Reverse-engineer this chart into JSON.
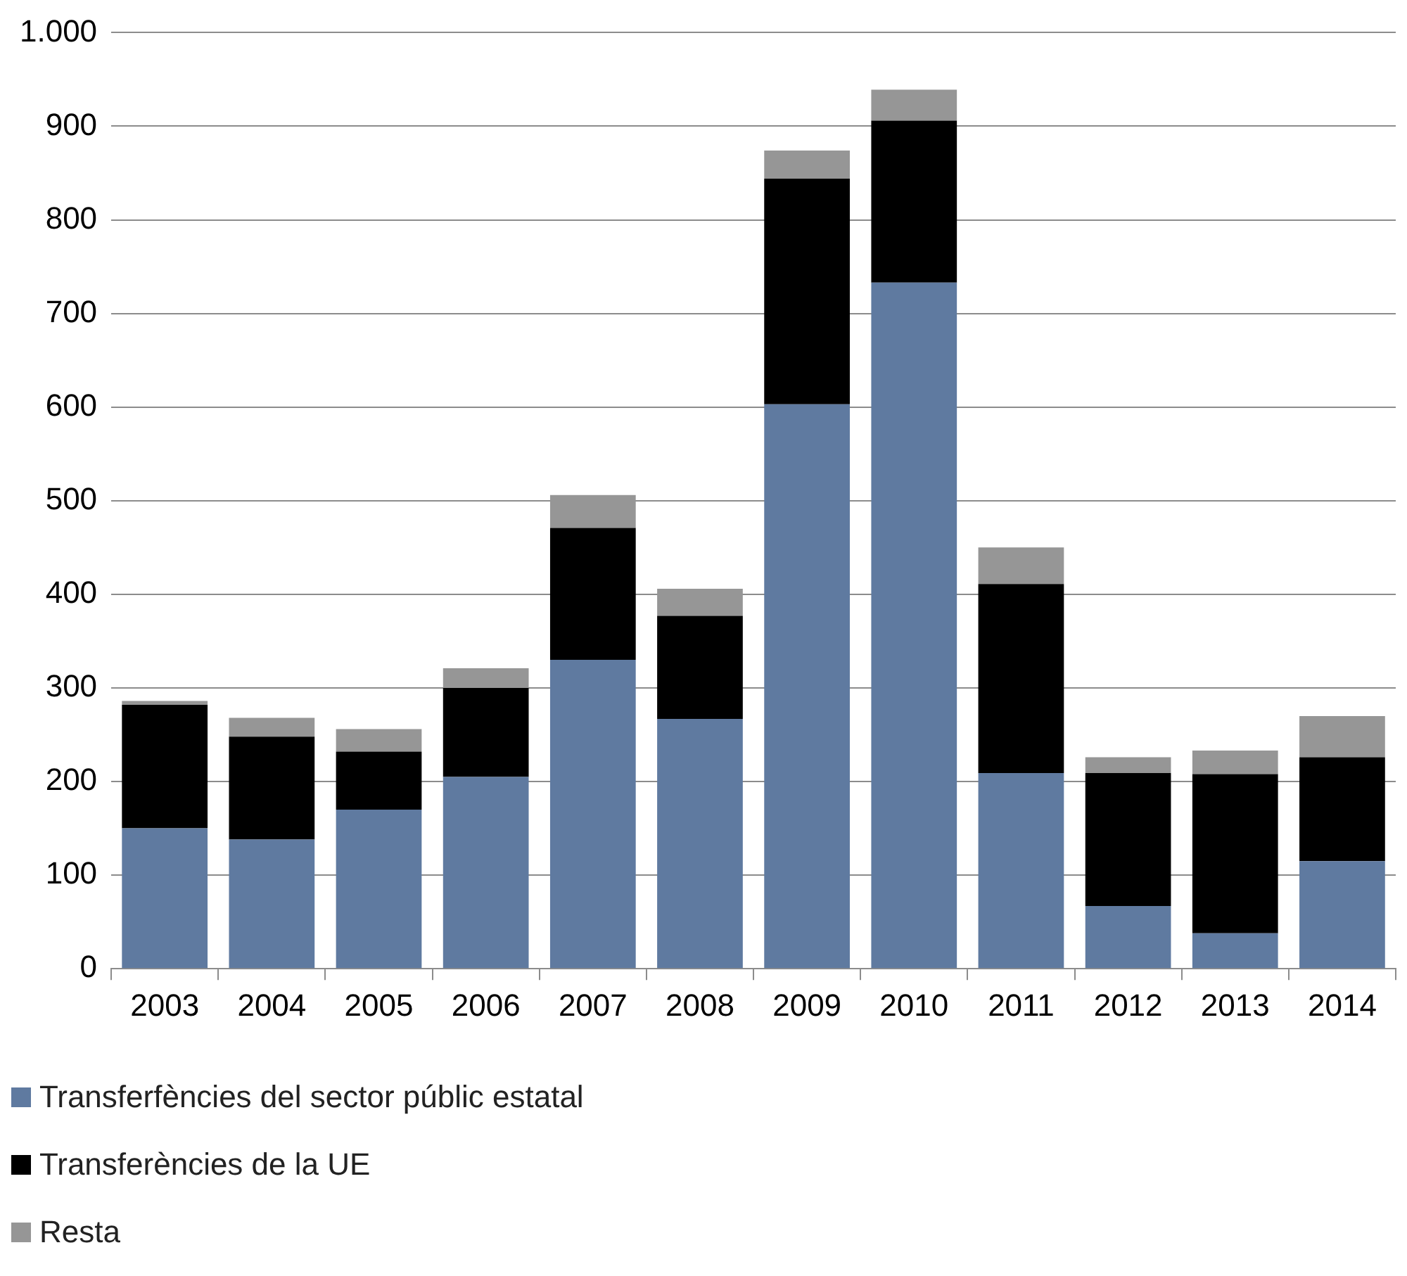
{
  "chart_data": {
    "type": "bar",
    "stacked": true,
    "categories": [
      "2003",
      "2004",
      "2005",
      "2006",
      "2007",
      "2008",
      "2009",
      "2010",
      "2011",
      "2012",
      "2013",
      "2014"
    ],
    "series": [
      {
        "name": "Transferfències del sector públic estatal",
        "color": "#5f7aa0",
        "values": [
          150,
          138,
          170,
          205,
          330,
          267,
          603,
          733,
          209,
          67,
          38,
          115
        ]
      },
      {
        "name": "Transferències de la UE",
        "color": "#000000",
        "values": [
          132,
          110,
          62,
          95,
          141,
          110,
          241,
          173,
          202,
          142,
          170,
          111
        ]
      },
      {
        "name": "Resta",
        "color": "#969696",
        "values": [
          4,
          20,
          24,
          21,
          35,
          29,
          30,
          33,
          39,
          17,
          25,
          44
        ]
      }
    ],
    "ylim": [
      0,
      1000
    ],
    "yticks": [
      0,
      100,
      200,
      300,
      400,
      500,
      600,
      700,
      800,
      900,
      {
        "value": 1000,
        "label": "1.000"
      }
    ],
    "grid": "y",
    "legend": "bottom"
  }
}
